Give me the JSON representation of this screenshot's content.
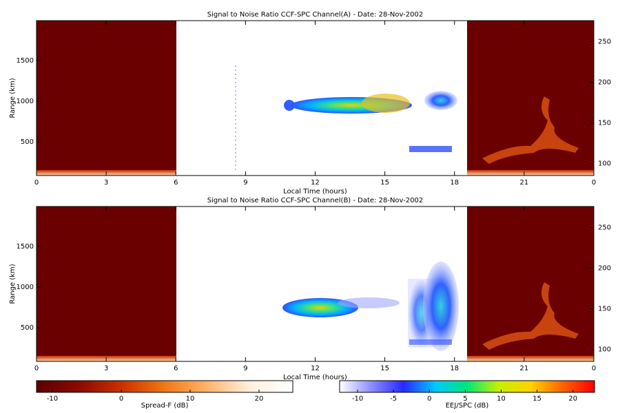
{
  "chart_data": [
    {
      "type": "heatmap",
      "title": "Signal to Noise Ratio CCF-SPC Channel(A) - Date: 28-Nov-2002",
      "xlabel": "Local Time (hours)",
      "ylabel": "Range (km)",
      "xlim": [
        0,
        24
      ],
      "xticks": [
        0,
        3,
        6,
        9,
        12,
        15,
        18,
        21,
        {
          "value": 24,
          "label": "0"
        }
      ],
      "ylim": [
        85,
        1990
      ],
      "yticks": [
        500,
        1000,
        1500
      ],
      "y2lim": [
        85,
        276
      ],
      "y2ticks": [
        100,
        150,
        200,
        250
      ]
    },
    {
      "type": "heatmap",
      "title": "Signal to Noise Ratio CCF-SPC Channel(B) - Date: 28-Nov-2002",
      "xlabel": "Local Time (hours)",
      "ylabel": "Range (km)",
      "xlim": [
        0,
        24
      ],
      "xticks": [
        0,
        3,
        6,
        9,
        12,
        15,
        18,
        21,
        {
          "value": 24,
          "label": "0"
        }
      ],
      "ylim": [
        85,
        1990
      ],
      "yticks": [
        500,
        1000,
        1500
      ],
      "y2lim": [
        85,
        276
      ],
      "y2ticks": [
        100,
        150,
        200,
        250
      ]
    },
    {
      "type": "colorbar",
      "label": "Spread-F (dB)",
      "lim": [
        -12.3,
        24.9
      ],
      "ticks": [
        -10,
        0,
        10,
        20
      ],
      "colors": [
        "#5a0000",
        "#8c0a00",
        "#c83200",
        "#f07814",
        "#ffb46e",
        "#fff0dc",
        "#ffffff"
      ]
    },
    {
      "type": "colorbar",
      "label": "EEJ/SPC (dB)",
      "lim": [
        -12.5,
        23
      ],
      "ticks": [
        -10,
        -5,
        0,
        5,
        10,
        15,
        20
      ],
      "colors": [
        "#ffffff",
        "#8c8cff",
        "#2828ff",
        "#00c8ff",
        "#00e678",
        "#c8f000",
        "#ffd200",
        "#ff6400",
        "#ff0000"
      ]
    }
  ]
}
